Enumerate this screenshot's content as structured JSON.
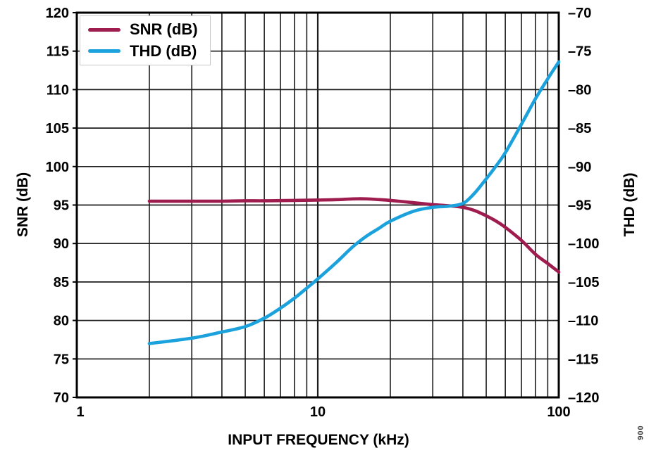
{
  "chart_data": {
    "type": "line",
    "x_axis": {
      "label": "INPUT FREQUENCY (kHz)",
      "scale": "log",
      "min": 1,
      "max": 100,
      "tick_values": [
        1,
        10,
        100
      ],
      "tick_labels": [
        "1",
        "10",
        "100"
      ],
      "gridline_values": [
        2,
        3,
        4,
        5,
        6,
        7,
        8,
        9,
        10,
        20,
        30,
        40,
        50,
        60,
        70,
        80,
        90
      ],
      "major_gridline_values": [
        10
      ]
    },
    "y_left_axis": {
      "label": "SNR (dB)",
      "min": 70,
      "max": 120,
      "tick_values": [
        120,
        115,
        110,
        105,
        100,
        95,
        90,
        85,
        80,
        75,
        70
      ],
      "tick_labels": [
        "120",
        "115",
        "110",
        "105",
        "100",
        "95",
        "90",
        "85",
        "80",
        "75",
        "70"
      ]
    },
    "y_right_axis": {
      "label": "THD (dB)",
      "min": -120,
      "max": -70,
      "tick_values": [
        -70,
        -75,
        -80,
        -85,
        -90,
        -95,
        -100,
        -105,
        -110,
        -115,
        -120
      ],
      "tick_labels": [
        "–70",
        "–75",
        "–80",
        "–85",
        "–90",
        "–95",
        "–100",
        "–105",
        "–110",
        "–115",
        "–120"
      ]
    },
    "legend": {
      "position": "top-left",
      "items": [
        "SNR (dB)",
        "THD (dB)"
      ]
    },
    "grid": true,
    "colors": {
      "grid": "#1c1c1c",
      "frame": "#000000",
      "snr": "#9E1C4E",
      "thd": "#1BA2DC"
    },
    "series": [
      {
        "name": "SNR (dB)",
        "axis": "left",
        "color": "#9E1C4E",
        "points": [
          [
            2,
            95.5
          ],
          [
            3,
            95.5
          ],
          [
            4,
            95.5
          ],
          [
            5,
            95.55
          ],
          [
            6,
            95.55
          ],
          [
            8,
            95.6
          ],
          [
            10,
            95.65
          ],
          [
            12,
            95.7
          ],
          [
            14,
            95.8
          ],
          [
            16,
            95.8
          ],
          [
            18,
            95.7
          ],
          [
            20,
            95.6
          ],
          [
            25,
            95.3
          ],
          [
            30,
            95.05
          ],
          [
            35,
            94.9
          ],
          [
            40,
            94.7
          ],
          [
            45,
            94.25
          ],
          [
            50,
            93.6
          ],
          [
            55,
            92.9
          ],
          [
            60,
            92.1
          ],
          [
            70,
            90.4
          ],
          [
            80,
            88.6
          ],
          [
            90,
            87.4
          ],
          [
            100,
            86.3
          ]
        ]
      },
      {
        "name": "THD (dB)",
        "axis": "right",
        "color": "#1BA2DC",
        "points": [
          [
            2,
            -113
          ],
          [
            3,
            -112.3
          ],
          [
            4,
            -111.5
          ],
          [
            5,
            -110.8
          ],
          [
            6,
            -109.7
          ],
          [
            7,
            -108.4
          ],
          [
            8,
            -107.1
          ],
          [
            9,
            -105.8
          ],
          [
            10,
            -104.6
          ],
          [
            12,
            -102.4
          ],
          [
            14,
            -100.4
          ],
          [
            16,
            -99.0
          ],
          [
            18,
            -98.0
          ],
          [
            20,
            -97.1
          ],
          [
            25,
            -95.8
          ],
          [
            30,
            -95.3
          ],
          [
            35,
            -95.15
          ],
          [
            40,
            -94.8
          ],
          [
            44,
            -93.7
          ],
          [
            48,
            -92.3
          ],
          [
            55,
            -89.9
          ],
          [
            60,
            -88.2
          ],
          [
            70,
            -84.5
          ],
          [
            80,
            -81.2
          ],
          [
            90,
            -78.6
          ],
          [
            100,
            -76.4
          ]
        ]
      }
    ],
    "figure_number": "006"
  }
}
